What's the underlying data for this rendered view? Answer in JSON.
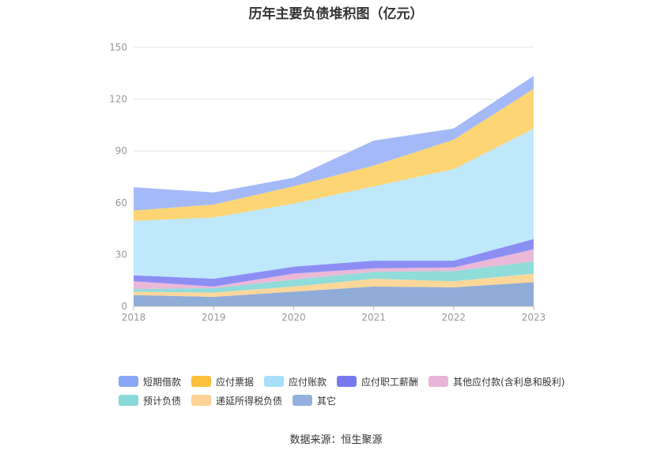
{
  "chart_data": {
    "type": "area",
    "stacked": true,
    "title": "历年主要负债堆积图（亿元）",
    "x": [
      "2018",
      "2019",
      "2020",
      "2021",
      "2022",
      "2023"
    ],
    "ylim": [
      0,
      150
    ],
    "yticks": [
      "0",
      "30",
      "60",
      "90",
      "120",
      "150"
    ],
    "grid": true,
    "legend_position": "bottom",
    "series": [
      {
        "name": "其它",
        "color": "#8fadd8",
        "values": [
          6.5,
          5.5,
          8.5,
          11.5,
          11.0,
          14.0
        ]
      },
      {
        "name": "递延所得税负债",
        "color": "#fcd79a",
        "values": [
          2.0,
          2.5,
          3.0,
          4.5,
          3.5,
          5.0
        ]
      },
      {
        "name": "预计负债",
        "color": "#8fdcda",
        "values": [
          1.5,
          2.5,
          4.0,
          4.0,
          6.0,
          7.0
        ]
      },
      {
        "name": "其他应付款(含利息和股利)",
        "color": "#eab9d8",
        "values": [
          4.5,
          1.0,
          3.5,
          2.0,
          2.0,
          7.0
        ]
      },
      {
        "name": "应付职工薪酬",
        "color": "#8d8ef4",
        "values": [
          3.5,
          4.5,
          4.0,
          4.5,
          4.0,
          6.0
        ]
      },
      {
        "name": "应付账款",
        "color": "#bfe8fb",
        "values": [
          31.5,
          35.5,
          36.5,
          43.0,
          53.0,
          64.0
        ]
      },
      {
        "name": "应付票据",
        "color": "#fdd574",
        "values": [
          6.0,
          7.5,
          10.0,
          12.0,
          17.0,
          23.0
        ]
      },
      {
        "name": "短期借款",
        "color": "#a4baf8",
        "values": [
          13.5,
          7.0,
          5.0,
          14.5,
          6.5,
          7.5
        ]
      }
    ]
  },
  "legend_rows": [
    [
      {
        "label": "短期借款",
        "color": "#88a8f7"
      },
      {
        "label": "应付票据",
        "color": "#fbc03c"
      },
      {
        "label": "应付账款",
        "color": "#a8e0fb"
      },
      {
        "label": "应付职工薪酬",
        "color": "#7a78ef"
      },
      {
        "label": "其他应付款(含利息和股利)",
        "color": "#e8b5d6"
      }
    ],
    [
      {
        "label": "预计负债",
        "color": "#86d9d6"
      },
      {
        "label": "递延所得税负债",
        "color": "#fed396"
      },
      {
        "label": "其它",
        "color": "#93b1dc"
      }
    ]
  ],
  "source_note": "数据来源：恒生聚源"
}
